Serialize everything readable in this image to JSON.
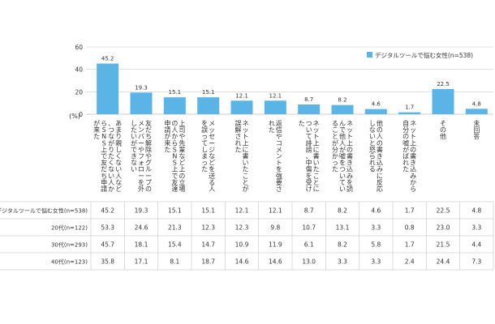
{
  "chart_data": {
    "type": "bar",
    "unit_label": "(%)",
    "ylim": [
      0,
      60
    ],
    "yticks": [
      0,
      20,
      40,
      60
    ],
    "legend": {
      "label": "デジタルツールで悩む女性(n=538)",
      "placement": "top-right"
    },
    "colors": {
      "bar": "#5ab4e5",
      "grid": "#cccccc",
      "table_line": "#bbbbbb"
    },
    "categories": [
      "あまり親しくない人など、つながりたくない人からSNS上で友だち申請が来た",
      "友だち解除やグループのメンバーやフォローを外したいができない",
      "上司や先輩など上の立場の人からSNS上で友達申請が来た",
      "メッセージなどを送る人を誤ってしまった",
      "ネット上に書いたことが誤解された",
      "返信やコメントを強要された",
      "ネット上に書いたことについて誹謗、中傷を受けた",
      "ネット上の書き込みを読んで他人が嘘をついていることが分かった",
      "他の人の書き込みに反応しないと怒られる",
      "ネット上の書き込みから自分の嘘がばれた",
      "その他",
      "未回答"
    ],
    "series": [
      {
        "name": "デジタルツールで悩む女性(n=538)",
        "values": [
          45.2,
          19.3,
          15.1,
          15.1,
          12.1,
          12.1,
          8.7,
          8.2,
          4.6,
          1.7,
          22.5,
          4.8
        ]
      }
    ],
    "table": {
      "rows": [
        {
          "label": "デジタルツールで悩む女性(n=538)",
          "values": [
            "45.2",
            "19.3",
            "15.1",
            "15.1",
            "12.1",
            "12.1",
            "8.7",
            "8.2",
            "4.6",
            "1.7",
            "22.5",
            "4.8"
          ]
        },
        {
          "label": "20代(n=122)",
          "values": [
            "53.3",
            "24.6",
            "21.3",
            "12.3",
            "12.3",
            "9.8",
            "10.7",
            "13.1",
            "3.3",
            "0.8",
            "23.0",
            "3.3"
          ]
        },
        {
          "label": "30代(n=293)",
          "values": [
            "45.7",
            "18.1",
            "15.4",
            "14.7",
            "10.9",
            "11.9",
            "6.1",
            "8.2",
            "5.8",
            "1.7",
            "21.5",
            "4.4"
          ]
        },
        {
          "label": "40代(n=123)",
          "values": [
            "35.8",
            "17.1",
            "8.1",
            "18.7",
            "14.6",
            "14.6",
            "13.0",
            "3.3",
            "3.3",
            "2.4",
            "24.4",
            "7.3"
          ]
        }
      ]
    }
  }
}
